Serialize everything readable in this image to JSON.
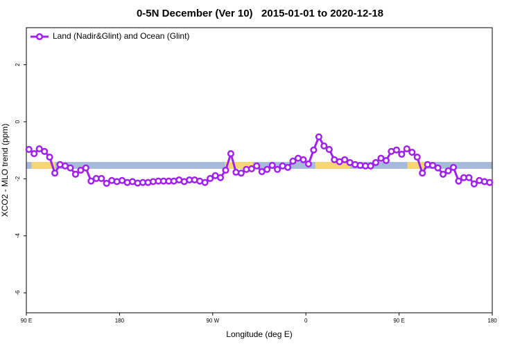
{
  "chart_data": {
    "type": "line",
    "title": "0-5N December (Ver 10)   2015-01-01 to 2020-12-18",
    "xlabel": "Longitude (deg E)",
    "ylabel": "XCO2 - MLO trend (ppm)",
    "xlim": [
      90,
      540
    ],
    "ylim": [
      -6.7,
      3.3
    ],
    "xticks": [
      {
        "value": 90,
        "label": "90 E"
      },
      180,
      {
        "value": 270,
        "label": "90 W"
      },
      {
        "value": 360,
        "label": "0"
      },
      {
        "value": 450,
        "label": "90 E"
      },
      {
        "value": 540,
        "label": "180"
      }
    ],
    "yticks": [
      -6,
      -4,
      -2,
      0,
      2
    ],
    "legend": "top-left",
    "surface_band": {
      "ylim": [
        -1.65,
        -1.41
      ],
      "color": "#a6bbd9",
      "land_color": "#f8d675",
      "land": [
        [
          95,
          118
        ],
        [
          282,
          309
        ],
        [
          369,
          403
        ],
        [
          458,
          476
        ]
      ]
    },
    "x": [
      92.5,
      97.5,
      102.5,
      107.5,
      112.5,
      117.5,
      122.5,
      127.5,
      132.5,
      137.5,
      142.5,
      147.5,
      152.5,
      157.5,
      162.5,
      167.5,
      172.5,
      177.5,
      182.5,
      187.5,
      192.5,
      197.5,
      202.5,
      207.5,
      212.5,
      217.5,
      222.5,
      227.5,
      232.5,
      237.5,
      242.5,
      247.5,
      252.5,
      257.5,
      262.5,
      267.5,
      272.5,
      277.5,
      282.5,
      287.5,
      292.5,
      297.5,
      302.5,
      307.5,
      312.5,
      317.5,
      322.5,
      327.5,
      332.5,
      337.5,
      342.5,
      347.5,
      352.5,
      357.5,
      362.5,
      367.5,
      372.5,
      377.5,
      382.5,
      387.5,
      392.5,
      397.5,
      402.5,
      407.5,
      412.5,
      417.5,
      422.5,
      427.5,
      432.5,
      437.5,
      442.5,
      447.5,
      452.5,
      457.5,
      462.5,
      467.5,
      472.5,
      477.5,
      482.5,
      487.5,
      492.5,
      497.5,
      502.5,
      507.5,
      512.5,
      517.5,
      522.5,
      527.5,
      532.5,
      537.5
    ],
    "series": [
      {
        "name": "Land (Nadir&Glint) and Ocean (Glint)",
        "color": "#a020f0",
        "values": [
          -0.97,
          -1.12,
          -0.95,
          -1.04,
          -1.24,
          -1.8,
          -1.5,
          -1.55,
          -1.62,
          -1.84,
          -1.7,
          -1.62,
          -2.08,
          -1.99,
          -1.99,
          -2.16,
          -2.06,
          -2.1,
          -2.06,
          -2.13,
          -2.1,
          -2.15,
          -2.13,
          -2.13,
          -2.1,
          -2.08,
          -2.08,
          -2.08,
          -2.08,
          -2.04,
          -2.1,
          -2.04,
          -2.04,
          -2.08,
          -2.13,
          -1.99,
          -1.89,
          -1.96,
          -1.7,
          -1.12,
          -1.77,
          -1.8,
          -1.67,
          -1.65,
          -1.55,
          -1.75,
          -1.67,
          -1.53,
          -1.67,
          -1.55,
          -1.6,
          -1.38,
          -1.28,
          -1.33,
          -1.48,
          -0.99,
          -0.53,
          -0.85,
          -0.97,
          -1.33,
          -1.4,
          -1.33,
          -1.43,
          -1.5,
          -1.53,
          -1.55,
          -1.55,
          -1.43,
          -1.28,
          -1.36,
          -1.04,
          -0.99,
          -1.14,
          -0.95,
          -1.07,
          -1.24,
          -1.8,
          -1.5,
          -1.53,
          -1.62,
          -1.84,
          -1.72,
          -1.6,
          -2.08,
          -1.96,
          -1.96,
          -2.18,
          -2.06,
          -2.1,
          -2.13
        ]
      }
    ]
  }
}
